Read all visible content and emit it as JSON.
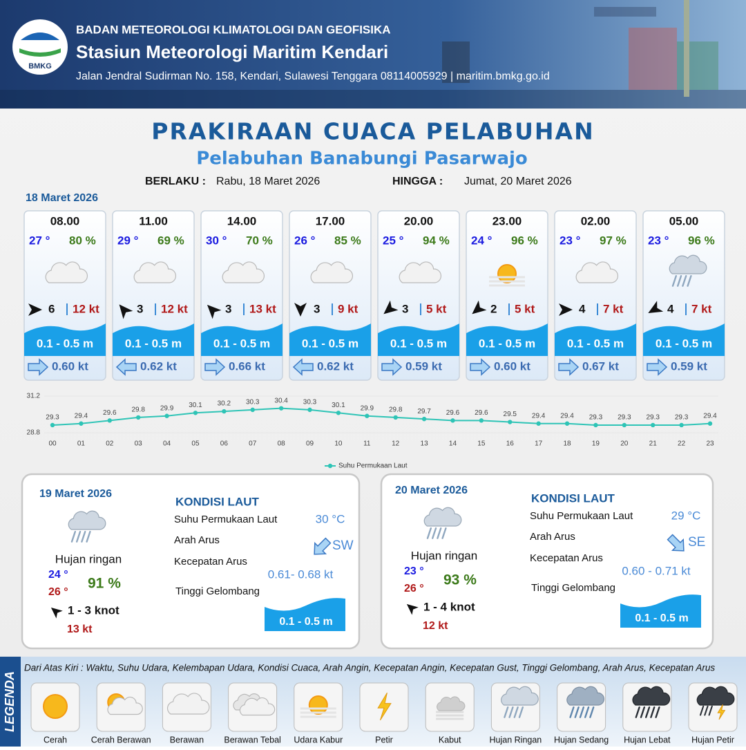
{
  "header": {
    "logo_text": "BMKG",
    "agency": "BADAN METEOROLOGI KLIMATOLOGI DAN GEOFISIKA",
    "station": "Stasiun Meteorologi Maritim Kendari",
    "address": "Jalan Jendral Sudirman No. 158, Kendari, Sulawesi Tenggara  08114005929 | maritim.bmkg.go.id"
  },
  "title": "PRAKIRAAN CUACA PELABUHAN",
  "subtitle": "Pelabuhan Banabungi Pasarwajo",
  "validity": {
    "from_label": "BERLAKU :",
    "from": "Rabu, 18 Maret 2026",
    "to_label": "HINGGA :",
    "to": "Jumat, 20 Maret 2026"
  },
  "today": {
    "date": "18 Maret 2026",
    "forecasts": [
      {
        "time": "08.00",
        "temp": "27 °",
        "humidity": "80 %",
        "wind": 6,
        "gust": "12 kt",
        "wave": "0.1 - 0.5 m",
        "current": "0.60 kt"
      },
      {
        "time": "11.00",
        "temp": "29 °",
        "humidity": "69 %",
        "wind": 3,
        "gust": "12 kt",
        "wave": "0.1 - 0.5 m",
        "current": "0.62 kt"
      },
      {
        "time": "14.00",
        "temp": "30 °",
        "humidity": "70 %",
        "wind": 3,
        "gust": "13 kt",
        "wave": "0.1 - 0.5 m",
        "current": "0.66 kt"
      },
      {
        "time": "17.00",
        "temp": "26 °",
        "humidity": "85 %",
        "wind": 3,
        "gust": "9 kt",
        "wave": "0.1 - 0.5 m",
        "current": "0.62 kt"
      },
      {
        "time": "20.00",
        "temp": "25 °",
        "humidity": "94 %",
        "wind": 3,
        "gust": "5 kt",
        "wave": "0.1 - 0.5 m",
        "current": "0.59 kt"
      },
      {
        "time": "23.00",
        "temp": "24 °",
        "humidity": "96 %",
        "wind": 2,
        "gust": "5 kt",
        "wave": "0.1 - 0.5 m",
        "current": "0.60 kt"
      },
      {
        "time": "02.00",
        "temp": "23 °",
        "humidity": "97 %",
        "wind": 4,
        "gust": "7 kt",
        "wave": "0.1 - 0.5 m",
        "current": "0.67 kt"
      },
      {
        "time": "05.00",
        "temp": "23 °",
        "humidity": "96 %",
        "wind": 4,
        "gust": "7 kt",
        "wave": "0.1 - 0.5 m",
        "current": "0.59 kt"
      }
    ]
  },
  "chart_data": {
    "type": "line",
    "categories": [
      "00",
      "01",
      "02",
      "03",
      "04",
      "05",
      "06",
      "07",
      "08",
      "09",
      "10",
      "11",
      "12",
      "13",
      "14",
      "15",
      "16",
      "17",
      "18",
      "19",
      "20",
      "21",
      "22",
      "23"
    ],
    "series": [
      {
        "name": "Suhu Permukaan Laut",
        "color": "#2ec4b6",
        "values": [
          29.3,
          29.4,
          29.6,
          29.8,
          29.9,
          30.1,
          30.2,
          30.3,
          30.4,
          30.3,
          30.1,
          29.9,
          29.8,
          29.7,
          29.6,
          29.6,
          29.5,
          29.4,
          29.4,
          29.3,
          29.3,
          29.3,
          29.3,
          29.4
        ]
      }
    ],
    "ylim": [
      28.8,
      31.2
    ],
    "yticks": [
      28.8,
      31.2
    ],
    "legend": "bottom"
  },
  "days": [
    {
      "date": "19 Maret 2026",
      "weather": "Hujan ringan",
      "temp_min": "24 °",
      "temp_max": "26 °",
      "humidity": "91 %",
      "wind": "1 - 3 knot",
      "gust": "13 kt",
      "sea_title": "KONDISI LAUT",
      "sea_temp_label": "Suhu Permukaan Laut",
      "sea_temp": "30 °C",
      "current_dir_label": "Arah Arus",
      "current_dir": "SW",
      "current_speed_label": "Kecepatan Arus",
      "current_speed": "0.61- 0.68 kt",
      "wave_label": "Tinggi Gelombang",
      "wave": "0.1 - 0.5 m"
    },
    {
      "date": "20 Maret 2026",
      "weather": "Hujan ringan",
      "temp_min": "23 °",
      "temp_max": "26 °",
      "humidity": "93 %",
      "wind": "1 - 4 knot",
      "gust": "12 kt",
      "sea_title": "KONDISI LAUT",
      "sea_temp_label": "Suhu Permukaan Laut",
      "sea_temp": "29 °C",
      "current_dir_label": "Arah Arus",
      "current_dir": "SE",
      "current_speed_label": "Kecepatan Arus",
      "current_speed": "0.60 - 0.71 kt",
      "wave_label": "Tinggi Gelombang",
      "wave": "0.1 - 0.5 m"
    }
  ],
  "legend": {
    "title": "LEGENDA",
    "description": "Dari Atas Kiri : Waktu, Suhu Udara, Kelembapan Udara, Kondisi Cuaca, Arah Angin, Kecepatan Angin, Kecepatan Gust, Tinggi Gelombang, Arah Arus, Kecepatan Arus",
    "items": [
      "Cerah",
      "Cerah Berawan",
      "Berawan",
      "Berawan Tebal",
      "Udara Kabur",
      "Petir",
      "Kabut",
      "Hujan Ringan",
      "Hujan Sedang",
      "Hujan Lebat",
      "Hujan Petir"
    ]
  }
}
